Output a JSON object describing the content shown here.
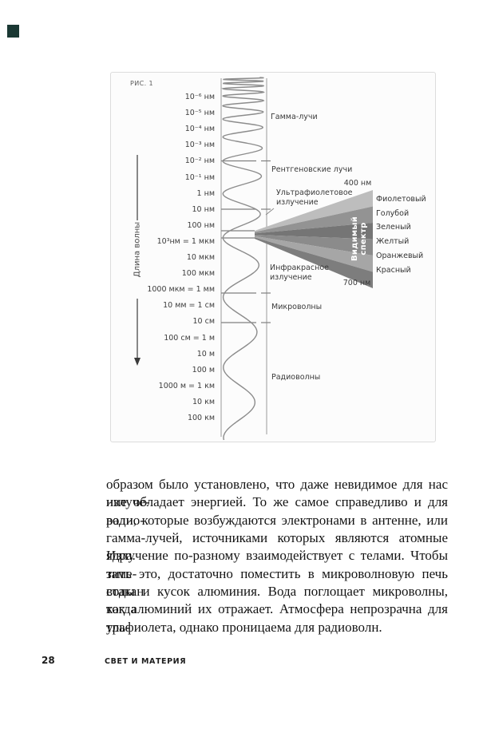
{
  "page": {
    "corner_mark_color": "#1a3833"
  },
  "figure": {
    "caption": "РИС. 1",
    "axis_label": "Длина волны",
    "scale": [
      "10⁻⁶ нм",
      "10⁻⁵ нм",
      "10⁻⁴ нм",
      "10⁻³ нм",
      "10⁻² нм",
      "10⁻¹ нм",
      "1 нм",
      "10 нм",
      "100 нм",
      "10³нм = 1 мкм",
      "10 мкм",
      "100 мкм",
      "1000 мкм = 1 мм",
      "10 мм = 1 см",
      "10 см",
      "100 см = 1 м",
      "10 м",
      "100 м",
      "1000 м = 1 км",
      "10 км",
      "100 км"
    ],
    "bands": [
      "Гамма-лучи",
      "Рентгеновские лучи",
      "Ультрафиолетовое излучение",
      "Инфракрасное излучение",
      "Микроволны",
      "Радиоволны"
    ],
    "visible_spectrum": {
      "label": "Видимый спектр",
      "start": "400 нм",
      "end": "700 нм",
      "colors": [
        "Фиолетовый",
        "Голубой",
        "Зеленый",
        "Желтый",
        "Оранжевый",
        "Красный"
      ],
      "band_grays": [
        "#bdbdbd",
        "#939393",
        "#757575",
        "#8b8b8b",
        "#a6a6a6",
        "#7d7d7d"
      ]
    }
  },
  "body": {
    "lines": [
      "образом было установлено, что даже невидимое для нас излуче-",
      "ние обладает энергией. То же самое справедливо и для радио-",
      "волн, которые возбуждаются электронами в антенне, или",
      "гамма-лучей, источниками которых являются атомные ядра.",
      "Излучение по-разному взаимодействует с телами. Чтобы заме-",
      "тить это, достаточно поместить в микроволновую печь стакан",
      "воды и кусок алюминия. Вода поглощает микроволны, тогда",
      "как алюминий их отражает. Атмосфера непрозрачна для уль-",
      "трафиолета, однако проницаема для радиоволн."
    ]
  },
  "footer": {
    "page_number": "28",
    "running_title": "СВЕТ И МАТЕРИЯ"
  }
}
